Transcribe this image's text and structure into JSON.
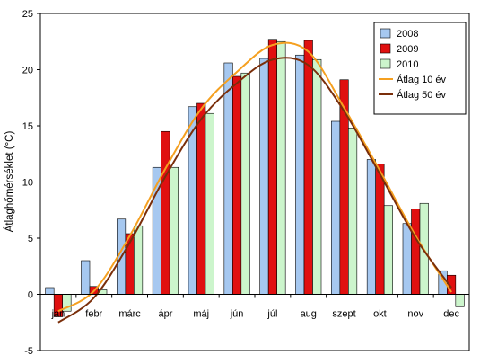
{
  "chart_data": {
    "type": "bar",
    "title": "",
    "xlabel": "",
    "ylabel": "Átlaghőmérséklet (°C)",
    "ylim": [
      -5,
      25
    ],
    "yticks": [
      -5,
      0,
      5,
      10,
      15,
      20,
      25
    ],
    "grid": false,
    "legend_position": "top-right",
    "categories": [
      "jan",
      "febr",
      "márc",
      "ápr",
      "máj",
      "jún",
      "júl",
      "aug",
      "szept",
      "okt",
      "nov",
      "dec"
    ],
    "bar_series": [
      {
        "name": "2008",
        "color": "#a6c8f0",
        "values": [
          0.6,
          3.0,
          6.7,
          11.3,
          16.7,
          20.6,
          21.0,
          21.3,
          15.4,
          12.0,
          6.3,
          2.1
        ]
      },
      {
        "name": "2009",
        "color": "#e01010",
        "values": [
          -2.0,
          0.7,
          5.4,
          14.5,
          17.0,
          19.4,
          22.7,
          22.6,
          19.1,
          11.6,
          7.6,
          1.7
        ]
      },
      {
        "name": "2010",
        "color": "#ccf5cc",
        "values": [
          -1.5,
          0.4,
          6.1,
          11.3,
          16.1,
          19.7,
          22.5,
          20.9,
          14.8,
          7.9,
          8.1,
          -1.1
        ]
      }
    ],
    "line_series": [
      {
        "name": "Átlag 10 év",
        "color": "#f5a020",
        "values": [
          -1.5,
          0.3,
          5.2,
          11.2,
          16.5,
          19.8,
          22.2,
          21.6,
          16.6,
          11.0,
          5.2,
          0.2
        ]
      },
      {
        "name": "Átlag 50 év",
        "color": "#7a2e0a",
        "values": [
          -2.5,
          -0.3,
          4.6,
          10.5,
          15.6,
          18.8,
          20.9,
          20.4,
          16.3,
          10.7,
          5.0,
          0.6
        ]
      }
    ]
  }
}
